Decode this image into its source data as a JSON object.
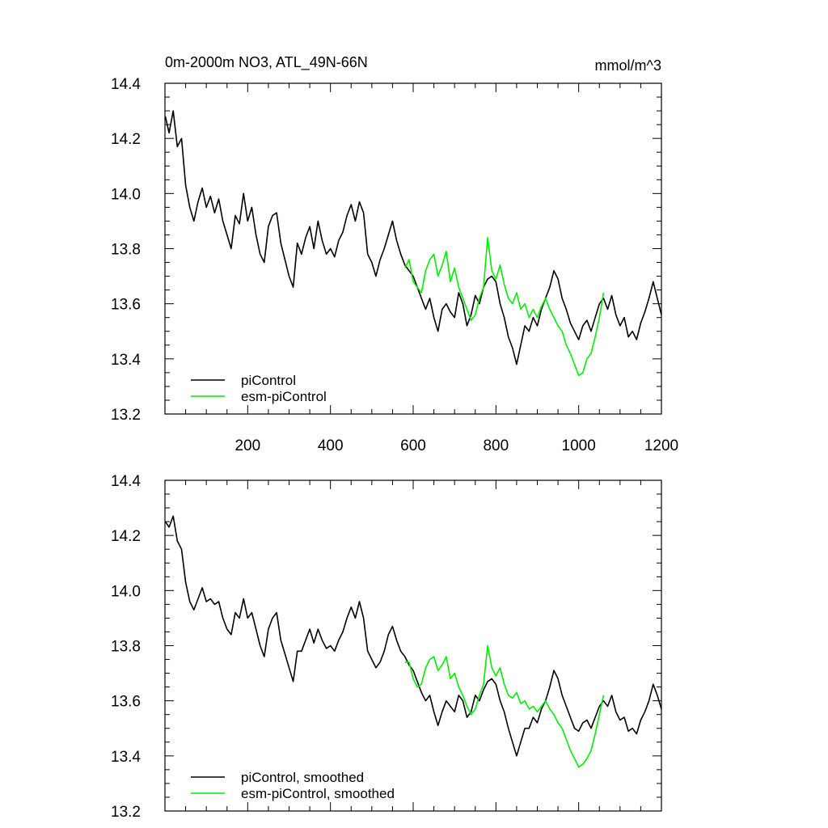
{
  "header": {
    "title": "0m-2000m NO3, ATL_49N-66N",
    "units": "mmol/m^3"
  },
  "colors": {
    "piControl": "#000000",
    "esm_piControl": "#00ee00"
  },
  "chart_data": [
    {
      "type": "line",
      "panel": "top",
      "xlim": [
        0,
        1200
      ],
      "ylim": [
        13.2,
        14.4
      ],
      "x_tick_labels": [
        "200",
        "400",
        "600",
        "800",
        "1000",
        "1200"
      ],
      "y_tick_labels": [
        "13.2",
        "13.4",
        "13.6",
        "13.8",
        "14.0",
        "14.2",
        "14.4"
      ],
      "legend_position": "bottom-left",
      "series": [
        {
          "name": "piControl",
          "color": "#000000",
          "x": [
            1,
            10,
            20,
            30,
            40,
            50,
            60,
            70,
            80,
            90,
            100,
            110,
            120,
            130,
            140,
            150,
            160,
            170,
            180,
            190,
            200,
            210,
            220,
            230,
            240,
            250,
            260,
            270,
            280,
            290,
            300,
            310,
            320,
            330,
            340,
            350,
            360,
            370,
            380,
            390,
            400,
            410,
            420,
            430,
            440,
            450,
            460,
            470,
            480,
            490,
            500,
            510,
            520,
            530,
            540,
            550,
            560,
            570,
            580,
            590,
            600,
            610,
            620,
            630,
            640,
            650,
            660,
            670,
            680,
            690,
            700,
            710,
            720,
            730,
            740,
            750,
            760,
            770,
            780,
            790,
            800,
            810,
            820,
            830,
            840,
            850,
            860,
            870,
            880,
            890,
            900,
            910,
            920,
            930,
            940,
            950,
            960,
            970,
            980,
            990,
            1000,
            1010,
            1020,
            1030,
            1040,
            1050,
            1060,
            1070,
            1080,
            1090,
            1100,
            1110,
            1120,
            1130,
            1140,
            1150,
            1160,
            1170,
            1180,
            1190,
            1200
          ],
          "values": [
            14.28,
            14.22,
            14.3,
            14.17,
            14.2,
            14.03,
            13.95,
            13.9,
            13.97,
            14.02,
            13.95,
            13.99,
            13.93,
            13.98,
            13.9,
            13.85,
            13.8,
            13.92,
            13.89,
            14.0,
            13.9,
            13.95,
            13.85,
            13.78,
            13.75,
            13.88,
            13.92,
            13.93,
            13.82,
            13.76,
            13.7,
            13.66,
            13.82,
            13.78,
            13.84,
            13.88,
            13.8,
            13.9,
            13.83,
            13.78,
            13.8,
            13.77,
            13.83,
            13.86,
            13.92,
            13.96,
            13.9,
            13.97,
            13.93,
            13.78,
            13.75,
            13.7,
            13.76,
            13.8,
            13.85,
            13.9,
            13.83,
            13.78,
            13.74,
            13.72,
            13.7,
            13.66,
            13.62,
            13.58,
            13.62,
            13.55,
            13.5,
            13.58,
            13.6,
            13.57,
            13.55,
            13.64,
            13.6,
            13.52,
            13.56,
            13.63,
            13.6,
            13.66,
            13.69,
            13.7,
            13.68,
            13.6,
            13.55,
            13.48,
            13.44,
            13.38,
            13.45,
            13.52,
            13.5,
            13.55,
            13.52,
            13.58,
            13.62,
            13.66,
            13.72,
            13.69,
            13.62,
            13.58,
            13.53,
            13.5,
            13.47,
            13.52,
            13.54,
            13.5,
            13.55,
            13.6,
            13.62,
            13.58,
            13.63,
            13.56,
            13.52,
            13.55,
            13.48,
            13.5,
            13.47,
            13.53,
            13.57,
            13.62,
            13.68,
            13.62,
            13.56
          ]
        },
        {
          "name": "esm-piControl",
          "color": "#00ee00",
          "x": [
            580,
            590,
            600,
            610,
            620,
            630,
            640,
            650,
            660,
            670,
            680,
            690,
            700,
            710,
            720,
            730,
            740,
            750,
            760,
            770,
            780,
            790,
            800,
            810,
            820,
            830,
            840,
            850,
            860,
            870,
            880,
            890,
            900,
            910,
            920,
            930,
            940,
            950,
            960,
            970,
            980,
            990,
            1000,
            1010,
            1020,
            1030,
            1040,
            1050,
            1060
          ],
          "values": [
            13.73,
            13.76,
            13.68,
            13.66,
            13.64,
            13.72,
            13.76,
            13.78,
            13.7,
            13.74,
            13.79,
            13.68,
            13.73,
            13.66,
            13.62,
            13.58,
            13.54,
            13.56,
            13.62,
            13.66,
            13.84,
            13.72,
            13.69,
            13.74,
            13.67,
            13.62,
            13.6,
            13.64,
            13.58,
            13.6,
            13.55,
            13.58,
            13.55,
            13.59,
            13.62,
            13.58,
            13.55,
            13.52,
            13.5,
            13.45,
            13.42,
            13.38,
            13.34,
            13.35,
            13.4,
            13.42,
            13.48,
            13.55,
            13.64
          ]
        }
      ]
    },
    {
      "type": "line",
      "panel": "bottom",
      "xlim": [
        0,
        1200
      ],
      "ylim": [
        13.2,
        14.4
      ],
      "y_tick_labels": [
        "13.2",
        "13.4",
        "13.6",
        "13.8",
        "14.0",
        "14.2",
        "14.4"
      ],
      "legend_position": "bottom-left",
      "series": [
        {
          "name": "piControl, smoothed",
          "color": "#000000",
          "x": [
            1,
            10,
            20,
            30,
            40,
            50,
            60,
            70,
            80,
            90,
            100,
            110,
            120,
            130,
            140,
            150,
            160,
            170,
            180,
            190,
            200,
            210,
            220,
            230,
            240,
            250,
            260,
            270,
            280,
            290,
            300,
            310,
            320,
            330,
            340,
            350,
            360,
            370,
            380,
            390,
            400,
            410,
            420,
            430,
            440,
            450,
            460,
            470,
            480,
            490,
            500,
            510,
            520,
            530,
            540,
            550,
            560,
            570,
            580,
            590,
            600,
            610,
            620,
            630,
            640,
            650,
            660,
            670,
            680,
            690,
            700,
            710,
            720,
            730,
            740,
            750,
            760,
            770,
            780,
            790,
            800,
            810,
            820,
            830,
            840,
            850,
            860,
            870,
            880,
            890,
            900,
            910,
            920,
            930,
            940,
            950,
            960,
            970,
            980,
            990,
            1000,
            1010,
            1020,
            1030,
            1040,
            1050,
            1060,
            1070,
            1080,
            1090,
            1100,
            1110,
            1120,
            1130,
            1140,
            1150,
            1160,
            1170,
            1180,
            1190,
            1200
          ],
          "values": [
            14.25,
            14.23,
            14.27,
            14.18,
            14.15,
            14.03,
            13.96,
            13.93,
            13.97,
            14.01,
            13.96,
            13.97,
            13.95,
            13.96,
            13.9,
            13.86,
            13.84,
            13.92,
            13.9,
            13.97,
            13.9,
            13.92,
            13.86,
            13.8,
            13.76,
            13.86,
            13.9,
            13.92,
            13.82,
            13.77,
            13.72,
            13.67,
            13.78,
            13.78,
            13.82,
            13.86,
            13.81,
            13.86,
            13.82,
            13.79,
            13.8,
            13.78,
            13.82,
            13.85,
            13.9,
            13.94,
            13.9,
            13.96,
            13.9,
            13.78,
            13.75,
            13.72,
            13.74,
            13.78,
            13.84,
            13.87,
            13.82,
            13.78,
            13.76,
            13.73,
            13.71,
            13.67,
            13.63,
            13.6,
            13.62,
            13.56,
            13.51,
            13.56,
            13.6,
            13.58,
            13.56,
            13.62,
            13.6,
            13.54,
            13.56,
            13.62,
            13.6,
            13.64,
            13.67,
            13.68,
            13.66,
            13.6,
            13.56,
            13.5,
            13.45,
            13.4,
            13.45,
            13.5,
            13.5,
            13.54,
            13.52,
            13.57,
            13.6,
            13.65,
            13.71,
            13.68,
            13.62,
            13.58,
            13.54,
            13.5,
            13.49,
            13.52,
            13.53,
            13.5,
            13.54,
            13.58,
            13.6,
            13.58,
            13.62,
            13.56,
            13.53,
            13.54,
            13.49,
            13.5,
            13.48,
            13.53,
            13.56,
            13.6,
            13.66,
            13.62,
            13.57
          ]
        },
        {
          "name": "esm-piControl, smoothed",
          "color": "#00ee00",
          "x": [
            580,
            590,
            600,
            610,
            620,
            630,
            640,
            650,
            660,
            670,
            680,
            690,
            700,
            710,
            720,
            730,
            740,
            750,
            760,
            770,
            780,
            790,
            800,
            810,
            820,
            830,
            840,
            850,
            860,
            870,
            880,
            890,
            900,
            910,
            920,
            930,
            940,
            950,
            960,
            970,
            980,
            990,
            1000,
            1010,
            1020,
            1030,
            1040,
            1050,
            1060
          ],
          "values": [
            13.74,
            13.74,
            13.68,
            13.65,
            13.66,
            13.72,
            13.75,
            13.76,
            13.71,
            13.73,
            13.76,
            13.68,
            13.7,
            13.65,
            13.62,
            13.58,
            13.55,
            13.57,
            13.62,
            13.66,
            13.8,
            13.72,
            13.69,
            13.72,
            13.66,
            13.62,
            13.61,
            13.63,
            13.59,
            13.6,
            13.57,
            13.58,
            13.56,
            13.58,
            13.6,
            13.57,
            13.55,
            13.52,
            13.5,
            13.46,
            13.42,
            13.39,
            13.36,
            13.37,
            13.39,
            13.42,
            13.48,
            13.55,
            13.62
          ]
        }
      ]
    }
  ]
}
